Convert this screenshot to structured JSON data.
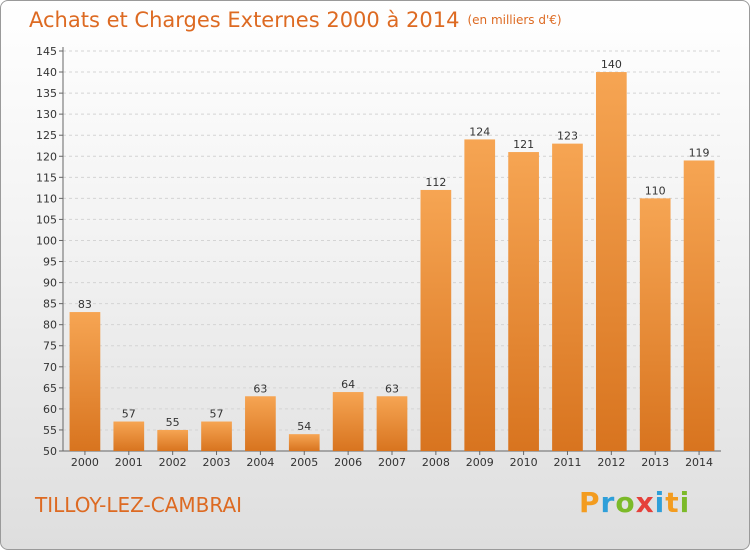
{
  "header": {
    "title": "Achats et Charges Externes 2000 à 2014",
    "subtitle": "(en milliers d'€)"
  },
  "footer": {
    "commune": "TILLOY-LEZ-CAMBRAI",
    "logo": [
      "P",
      "r",
      "o",
      "x",
      "i",
      "t",
      "i"
    ]
  },
  "colors": {
    "accent": "#dd6a22",
    "bar_top": "#f6a553",
    "bar_bottom": "#d8741f",
    "logo": [
      "#f39c1f",
      "#2e9fd9",
      "#7cba29",
      "#e5403a",
      "#2e9fd9",
      "#f39c1f",
      "#7cba29"
    ]
  },
  "chart_data": {
    "type": "bar",
    "title": "Achats et Charges Externes 2000 à 2014",
    "subtitle": "(en milliers d'€)",
    "xlabel": "",
    "ylabel": "",
    "categories": [
      "2000",
      "2001",
      "2002",
      "2003",
      "2004",
      "2005",
      "2006",
      "2007",
      "2008",
      "2009",
      "2010",
      "2011",
      "2012",
      "2013",
      "2014"
    ],
    "values": [
      83,
      57,
      55,
      57,
      63,
      54,
      64,
      63,
      112,
      124,
      121,
      123,
      140,
      110,
      119
    ],
    "ylim": [
      50,
      145
    ],
    "yticks": [
      50,
      55,
      60,
      65,
      70,
      75,
      80,
      85,
      90,
      95,
      100,
      105,
      110,
      115,
      120,
      125,
      130,
      135,
      140,
      145
    ],
    "grid": true,
    "legend": "none"
  }
}
